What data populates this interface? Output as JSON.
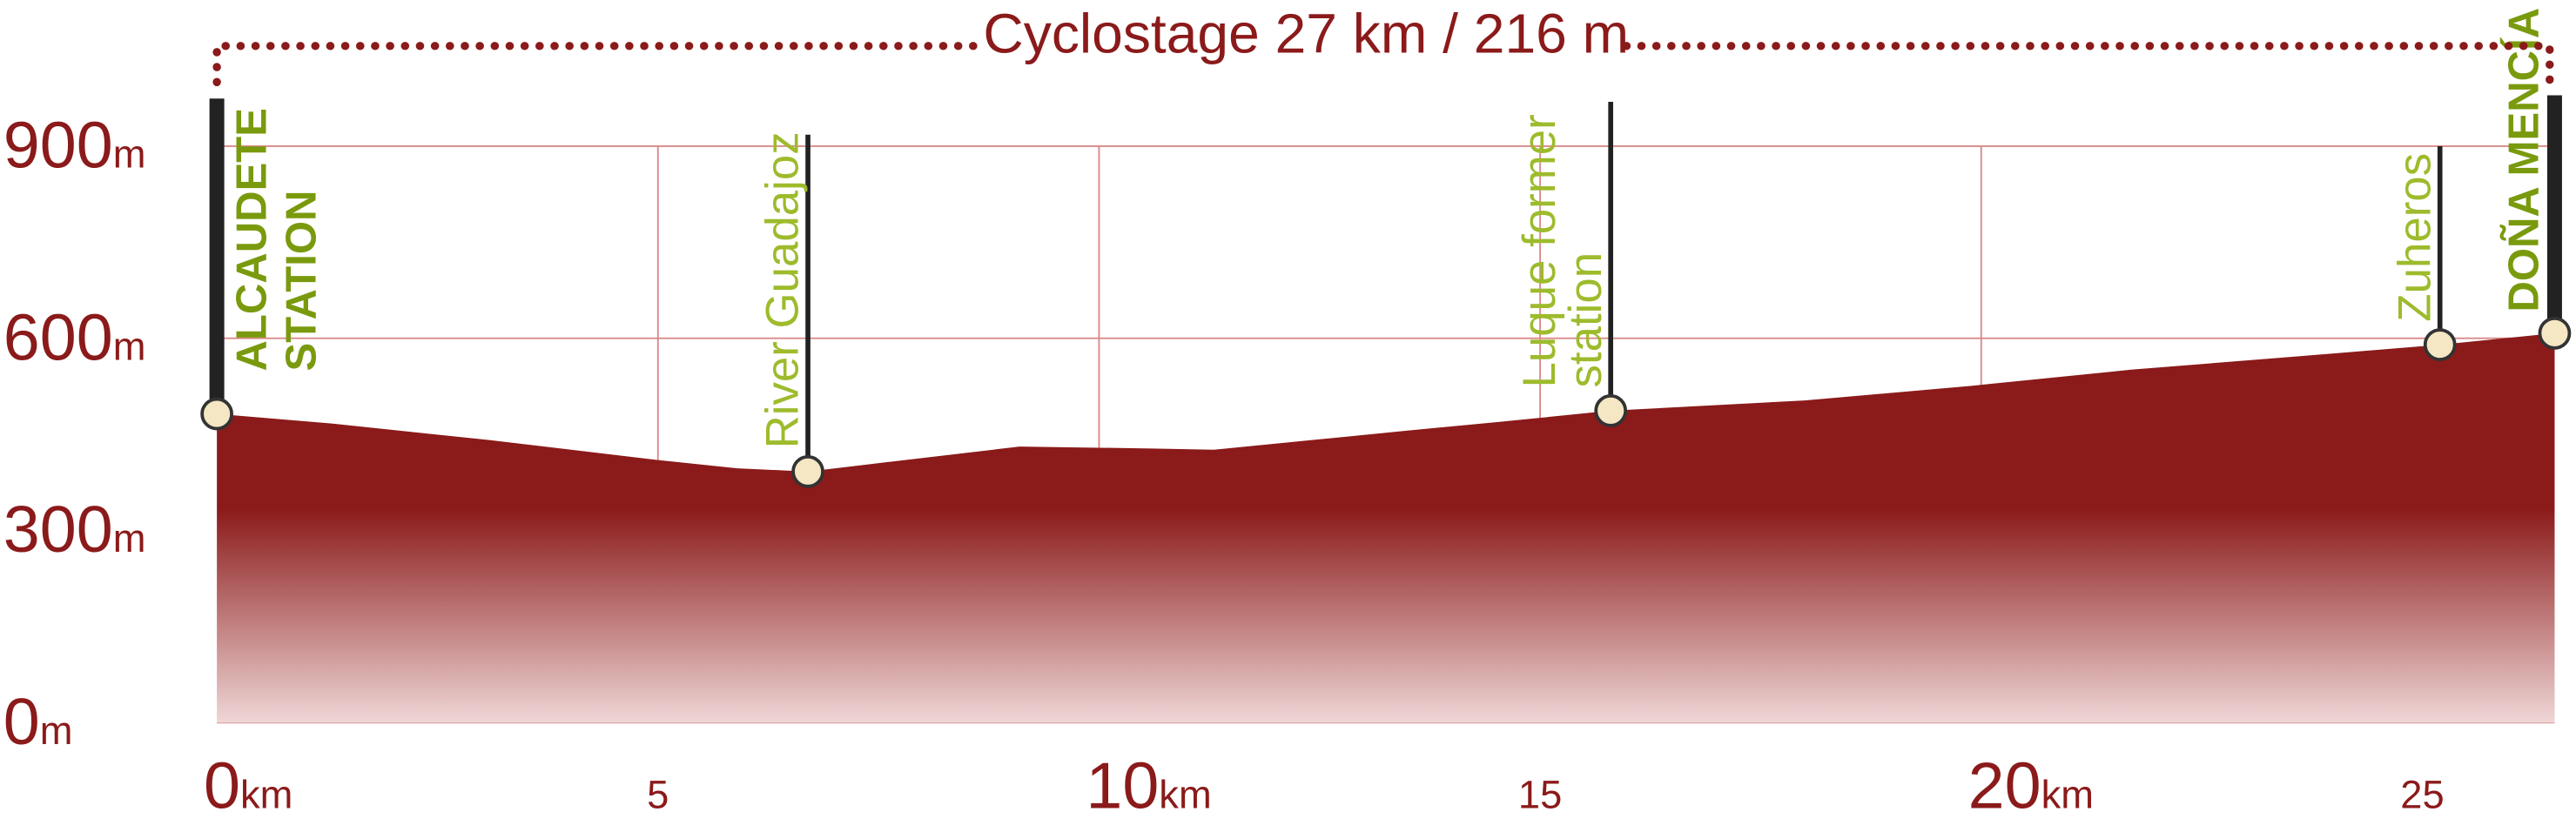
{
  "chart_data": {
    "type": "area",
    "title": "Cyclostage 27 km / 216 m",
    "x": [
      0,
      1.3,
      3.1,
      5.0,
      5.9,
      6.7,
      7.8,
      9.1,
      10.6,
      11.3,
      12.4,
      13.5,
      14.5,
      15.8,
      18.0,
      19.9,
      21.7,
      23.6,
      25.2,
      26.5
    ],
    "values": [
      482,
      467,
      441,
      410,
      397,
      392,
      410,
      431,
      428,
      426,
      441,
      456,
      469,
      487,
      503,
      526,
      551,
      572,
      590,
      608
    ],
    "color": "#8b1a1a",
    "xlim": [
      0,
      26.5
    ],
    "ylim": [
      0,
      900
    ],
    "xticks_major": [
      0,
      10,
      20
    ],
    "xticks_minor": [
      5,
      15,
      25
    ],
    "x_unit": "km",
    "yticks": [
      0,
      300,
      600,
      900
    ],
    "y_unit": "m",
    "grid": true,
    "waypoints": [
      {
        "label": [
          "ALCAUDETE",
          "STATION"
        ],
        "x": 0,
        "y": 482,
        "bold": true
      },
      {
        "label": [
          "River Guadajoz"
        ],
        "x": 6.7,
        "y": 392,
        "bold": false
      },
      {
        "label": [
          "Luque former",
          "station"
        ],
        "x": 15.8,
        "y": 487,
        "bold": false
      },
      {
        "label": [
          "Zuheros"
        ],
        "x": 25.2,
        "y": 590,
        "bold": false
      },
      {
        "label": [
          "DOÑA MENCÍA"
        ],
        "x": 26.5,
        "y": 608,
        "bold": true
      }
    ]
  }
}
